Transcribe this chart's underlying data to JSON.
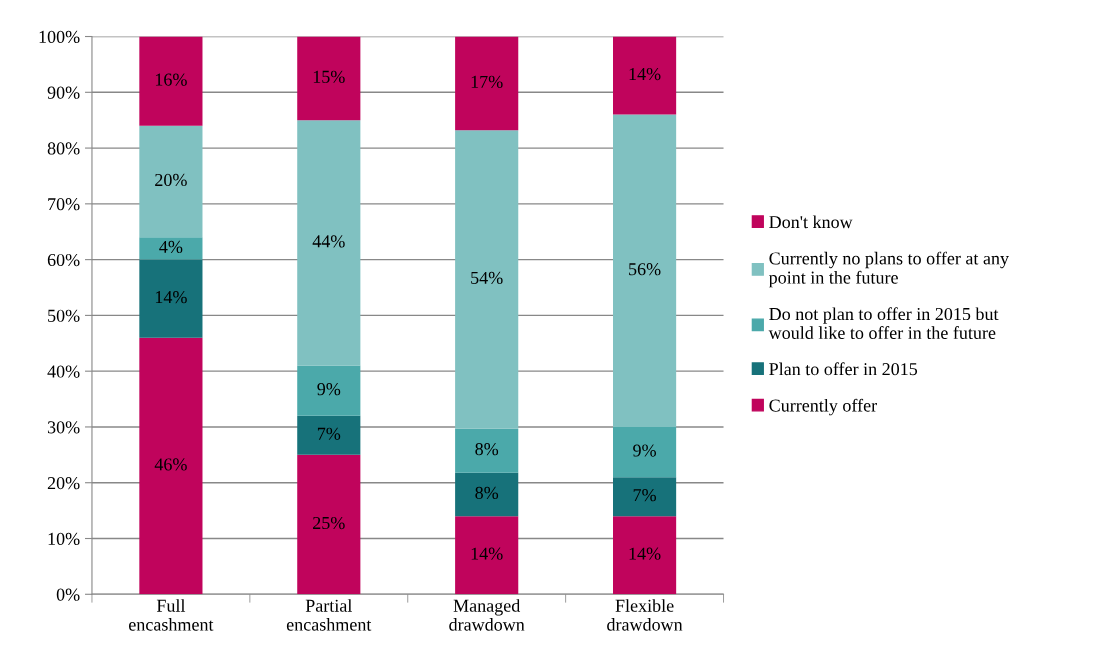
{
  "chart_data": {
    "type": "bar",
    "stacked": true,
    "categories": [
      "Full\nencashment",
      "Partial\nencashment",
      "Managed\ndrawdown",
      "Flexible\ndrawdown"
    ],
    "series": [
      {
        "name": "Currently offer",
        "color": "#c0045c",
        "values": [
          46,
          25,
          14,
          14
        ],
        "value_labels": [
          "46%",
          "25%",
          "14%",
          "14%"
        ]
      },
      {
        "name": "Plan to offer in 2015",
        "color": "#17727a",
        "values": [
          14,
          7,
          7.8,
          7
        ],
        "value_labels": [
          "14%",
          "7%",
          "8%",
          "7%"
        ]
      },
      {
        "name": "Do not plan to offer in 2015 but\nwould like to offer in the future",
        "color": "#4ba9aa",
        "values": [
          4,
          9,
          7.9,
          9
        ],
        "value_labels": [
          "4%",
          "9%",
          "8%",
          "9%"
        ]
      },
      {
        "name": "Currently no plans to offer at any\npoint in the future",
        "color": "#80c1c1",
        "values": [
          20,
          44,
          53.5,
          56
        ],
        "value_labels": [
          "20%",
          "44%",
          "54%",
          "56%"
        ]
      },
      {
        "name": "Don't know",
        "color": "#c0045c",
        "values": [
          16,
          15,
          16.8,
          14
        ],
        "value_labels": [
          "16%",
          "15%",
          "17%",
          "14%"
        ]
      }
    ],
    "ylim": [
      0,
      100
    ],
    "yticks": [
      {
        "value": 0,
        "label": "0%"
      },
      {
        "value": 10,
        "label": "10%"
      },
      {
        "value": 20,
        "label": "20%"
      },
      {
        "value": 30,
        "label": "30%"
      },
      {
        "value": 40,
        "label": "40%"
      },
      {
        "value": 50,
        "label": "50%"
      },
      {
        "value": 60,
        "label": "60%"
      },
      {
        "value": 70,
        "label": "70%"
      },
      {
        "value": 80,
        "label": "80%"
      },
      {
        "value": 90,
        "label": "90%"
      },
      {
        "value": 100,
        "label": "100%"
      }
    ],
    "grid": "y",
    "legend": "right"
  }
}
